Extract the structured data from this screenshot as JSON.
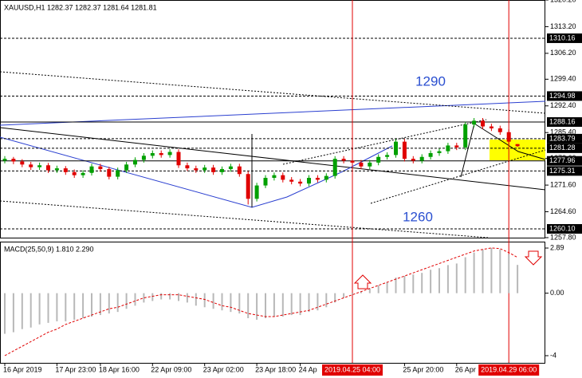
{
  "chart_data": [
    {
      "type": "candlestick",
      "title": "XAUUSD,H1  1282.37 1282.37 1281.64 1281.81",
      "categories": [
        "16 Apr 2019",
        null,
        null,
        null,
        null,
        null,
        "17 Apr 23:00",
        null,
        null,
        null,
        null,
        "18 Apr 16:00",
        null,
        null,
        null,
        null,
        null,
        "22 Apr 09:00",
        null,
        null,
        null,
        null,
        null,
        "23 Apr 02:00",
        null,
        null,
        null,
        null,
        null,
        "23 Apr 18:00",
        null,
        null,
        null,
        null,
        "24 Ap",
        null,
        null,
        null,
        null,
        null,
        null,
        null,
        null,
        null,
        null,
        null,
        "25 Apr 20:00",
        null,
        null,
        null,
        null,
        null,
        "26 Apr",
        null,
        null,
        null,
        null,
        null,
        null,
        null
      ],
      "open": [
        1278.0,
        1278.5,
        1277.8,
        1277.0,
        1276.3,
        1276.8,
        1275.5,
        1276.0,
        1275.0,
        1274.2,
        1274.8,
        1276.5,
        1275.8,
        1273.8,
        1275.5,
        1277.0,
        1278.2,
        1279.3,
        1280.0,
        1279.5,
        1280.3,
        1276.8,
        1276.0,
        1275.5,
        1276.2,
        1275.0,
        1275.8,
        1276.5,
        1274.5,
        1268.0,
        1271.5,
        1273.5,
        1274.2,
        1273.0,
        1272.5,
        1272.0,
        1273.5,
        1273.0,
        1274.0,
        1278.5,
        1278.0,
        1277.5,
        1276.5,
        1277.5,
        1279.0,
        1279.5,
        1283.0,
        1278.5,
        1278.0,
        1279.0,
        1280.0,
        1280.5,
        1282.0,
        1281.5,
        1287.5,
        1288.5,
        1287.0,
        1286.5,
        1285.5,
        1282.37
      ],
      "high": [
        1279.2,
        1279.0,
        1278.4,
        1277.7,
        1277.5,
        1277.4,
        1276.7,
        1276.6,
        1275.7,
        1275.5,
        1277.2,
        1277.2,
        1276.4,
        1276.2,
        1277.7,
        1278.9,
        1280.0,
        1280.7,
        1280.7,
        1281.0,
        1281.0,
        1277.5,
        1276.7,
        1276.9,
        1276.9,
        1276.5,
        1277.2,
        1277.2,
        1275.2,
        1272.2,
        1274.2,
        1274.9,
        1274.9,
        1273.7,
        1273.2,
        1274.2,
        1274.2,
        1274.7,
        1279.2,
        1279.2,
        1278.7,
        1278.2,
        1278.2,
        1279.7,
        1280.2,
        1283.7,
        1283.7,
        1279.2,
        1279.7,
        1280.7,
        1281.2,
        1282.7,
        1282.7,
        1288.2,
        1289.2,
        1289.2,
        1287.7,
        1287.2,
        1286.2,
        1282.37
      ],
      "low": [
        1277.3,
        1277.1,
        1276.3,
        1275.6,
        1275.6,
        1274.8,
        1274.8,
        1274.3,
        1273.5,
        1273.5,
        1274.1,
        1275.1,
        1273.1,
        1273.1,
        1274.8,
        1276.3,
        1277.5,
        1278.6,
        1278.8,
        1278.8,
        1276.1,
        1275.3,
        1274.8,
        1274.8,
        1274.3,
        1274.3,
        1275.1,
        1273.8,
        1266.5,
        1267.3,
        1270.8,
        1272.8,
        1272.3,
        1271.8,
        1271.3,
        1271.3,
        1272.3,
        1272.3,
        1273.3,
        1277.3,
        1276.8,
        1275.8,
        1275.8,
        1276.8,
        1278.3,
        1278.8,
        1277.8,
        1277.3,
        1277.3,
        1278.3,
        1279.3,
        1279.8,
        1280.8,
        1280.8,
        1286.8,
        1286.3,
        1285.8,
        1284.8,
        1282.3,
        1281.64
      ],
      "close": [
        1278.5,
        1277.8,
        1277.0,
        1276.3,
        1276.8,
        1275.5,
        1276.0,
        1275.0,
        1274.2,
        1274.8,
        1276.5,
        1275.8,
        1273.8,
        1275.5,
        1277.0,
        1278.2,
        1279.3,
        1280.0,
        1279.5,
        1280.3,
        1276.8,
        1276.0,
        1275.5,
        1276.2,
        1275.0,
        1275.8,
        1276.5,
        1274.5,
        1268.0,
        1271.5,
        1273.5,
        1274.2,
        1273.0,
        1272.5,
        1272.0,
        1273.5,
        1273.0,
        1274.0,
        1278.5,
        1278.0,
        1277.5,
        1276.5,
        1277.5,
        1279.0,
        1279.5,
        1283.0,
        1278.5,
        1278.0,
        1279.0,
        1280.0,
        1280.5,
        1282.0,
        1281.5,
        1287.5,
        1288.5,
        1287.0,
        1286.5,
        1285.5,
        1283.0,
        1281.81
      ],
      "up_color": "#00a000",
      "down_color": "#e00000",
      "ylim": [
        1257.8,
        1320.2
      ],
      "yticks": [
        {
          "value": 1320.2,
          "label": "1320.20"
        },
        {
          "value": 1313.2,
          "label": "1313.20"
        },
        {
          "value": 1306.2,
          "label": "1306.20"
        },
        {
          "value": 1299.4,
          "label": "1299.40"
        },
        {
          "value": 1292.4,
          "label": "1292.40"
        },
        {
          "value": 1285.4,
          "label": "1285.40"
        },
        {
          "value": 1278.6,
          "label": "1278.60"
        },
        {
          "value": 1271.6,
          "label": "1271.60"
        },
        {
          "value": 1264.6,
          "label": "1264.60"
        },
        {
          "value": 1257.8,
          "label": "1257.80"
        }
      ],
      "levels": [
        1310.16,
        1294.98,
        1288.16,
        1283.79,
        1281.28,
        1277.96,
        1275.31,
        {
          "value": 1260.1,
          "label": "1260.10"
        }
      ],
      "annotations": [
        "1290",
        "1260"
      ],
      "cursors": [
        {
          "at": 40,
          "label": "2019.04.25 04:00"
        },
        {
          "at": 58,
          "label": "2019.04.29 06:00"
        }
      ],
      "cursor_color": "#e00000"
    },
    {
      "type": "macd",
      "title": "MACD(25,50,9) 1.810 2.290",
      "values": [
        -2.6,
        -2.5,
        -2.3,
        -2.2,
        -2.0,
        -1.9,
        -1.8,
        -1.8,
        -1.7,
        -1.6,
        -1.5,
        -1.4,
        -1.3,
        -1.2,
        -1.0,
        -0.8,
        -0.6,
        -0.5,
        -0.4,
        -0.4,
        -0.5,
        -0.6,
        -0.8,
        -0.9,
        -1.0,
        -1.1,
        -1.2,
        -1.3,
        -1.6,
        -1.7,
        -1.6,
        -1.5,
        -1.5,
        -1.4,
        -1.4,
        -1.2,
        -1.1,
        -0.9,
        -0.6,
        -0.3,
        -0.1,
        0.1,
        0.3,
        0.5,
        0.7,
        1.0,
        1.1,
        1.2,
        1.3,
        1.5,
        1.6,
        1.8,
        1.9,
        2.3,
        2.6,
        2.8,
        2.9,
        2.8,
        2.5,
        1.81
      ],
      "signal": [
        -4.0,
        -3.7,
        -3.4,
        -3.1,
        -2.8,
        -2.5,
        -2.3,
        -2.0,
        -1.8,
        -1.6,
        -1.4,
        -1.2,
        -1.0,
        -0.9,
        -0.7,
        -0.5,
        -0.3,
        -0.2,
        -0.1,
        -0.1,
        -0.1,
        -0.2,
        -0.3,
        -0.4,
        -0.6,
        -0.8,
        -0.9,
        -1.1,
        -1.3,
        -1.4,
        -1.5,
        -1.5,
        -1.4,
        -1.3,
        -1.2,
        -1.1,
        -0.9,
        -0.7,
        -0.5,
        -0.3,
        -0.1,
        0.1,
        0.3,
        0.5,
        0.7,
        0.9,
        1.1,
        1.3,
        1.5,
        1.7,
        1.9,
        2.1,
        2.3,
        2.5,
        2.7,
        2.8,
        2.9,
        2.85,
        2.6,
        2.29
      ],
      "ylim": [
        -4.46,
        3.3
      ],
      "yticks": [
        2.89,
        {
          "value": 0,
          "label": "0.00"
        },
        -4
      ],
      "hist_color": "#b8b8b8",
      "signal_color": "#e00000"
    }
  ]
}
